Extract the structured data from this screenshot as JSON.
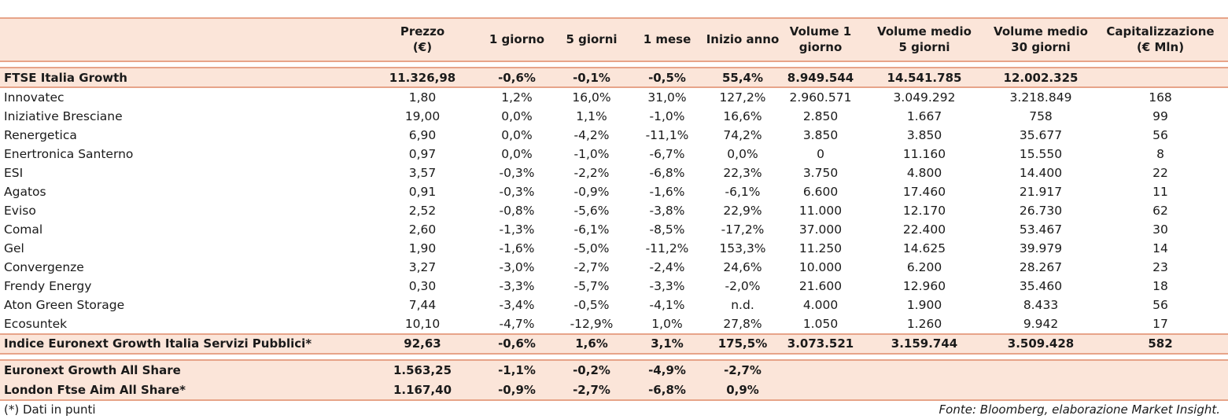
{
  "headers": [
    "",
    [
      "Prezzo",
      "(€)"
    ],
    [
      "1 giorno"
    ],
    [
      "5 giorni"
    ],
    [
      "1 mese"
    ],
    [
      "Inizio anno"
    ],
    [
      "Volume 1",
      "giorno"
    ],
    [
      "Volume medio",
      "5 giorni"
    ],
    [
      "Volume medio",
      "30 giorni"
    ],
    [
      "Capitalizzazione",
      "(€ Mln)"
    ]
  ],
  "ftse_row": [
    "FTSE Italia Growth",
    "11.326,98",
    "-0,6%",
    "-0,1%",
    "-0,5%",
    "55,4%",
    "8.949.544",
    "14.541.785",
    "12.002.325",
    ""
  ],
  "rows": [
    [
      "Innovatec",
      "1,80",
      "1,2%",
      "16,0%",
      "31,0%",
      "127,2%",
      "2.960.571",
      "3.049.292",
      "3.218.849",
      "168"
    ],
    [
      "Iniziative Bresciane",
      "19,00",
      "0,0%",
      "1,1%",
      "-1,0%",
      "16,6%",
      "2.850",
      "1.667",
      "758",
      "99"
    ],
    [
      "Renergetica",
      "6,90",
      "0,0%",
      "-4,2%",
      "-11,1%",
      "74,2%",
      "3.850",
      "3.850",
      "35.677",
      "56"
    ],
    [
      "Enertronica Santerno",
      "0,97",
      "0,0%",
      "-1,0%",
      "-6,7%",
      "0,0%",
      "0",
      "11.160",
      "15.550",
      "8"
    ],
    [
      "ESI",
      "3,57",
      "-0,3%",
      "-2,2%",
      "-6,8%",
      "22,3%",
      "3.750",
      "4.800",
      "14.400",
      "22"
    ],
    [
      "Agatos",
      "0,91",
      "-0,3%",
      "-0,9%",
      "-1,6%",
      "-6,1%",
      "6.600",
      "17.460",
      "21.917",
      "11"
    ],
    [
      "Eviso",
      "2,52",
      "-0,8%",
      "-5,6%",
      "-3,8%",
      "22,9%",
      "11.000",
      "12.170",
      "26.730",
      "62"
    ],
    [
      "Comal",
      "2,60",
      "-1,3%",
      "-6,1%",
      "-8,5%",
      "-17,2%",
      "37.000",
      "22.400",
      "53.467",
      "30"
    ],
    [
      "Gel",
      "1,90",
      "-1,6%",
      "-5,0%",
      "-11,2%",
      "153,3%",
      "11.250",
      "14.625",
      "39.979",
      "14"
    ],
    [
      "Convergenze",
      "3,27",
      "-3,0%",
      "-2,7%",
      "-2,4%",
      "24,6%",
      "10.000",
      "6.200",
      "28.267",
      "23"
    ],
    [
      "Frendy Energy",
      "0,30",
      "-3,3%",
      "-5,7%",
      "-3,3%",
      "-2,0%",
      "21.600",
      "12.960",
      "35.460",
      "18"
    ],
    [
      "Aton Green Storage",
      "7,44",
      "-3,4%",
      "-0,5%",
      "-4,1%",
      "n.d.",
      "4.000",
      "1.900",
      "8.433",
      "56"
    ],
    [
      "Ecosuntek",
      "10,10",
      "-4,7%",
      "-12,9%",
      "1,0%",
      "27,8%",
      "1.050",
      "1.260",
      "9.942",
      "17"
    ]
  ],
  "index_row": [
    "Indice Euronext Growth Italia Servizi Pubblici*",
    "92,63",
    "-0,6%",
    "1,6%",
    "3,1%",
    "175,5%",
    "3.073.521",
    "3.159.744",
    "3.509.428",
    "582"
  ],
  "market_rows": [
    [
      "Euronext Growth All Share",
      "1.563,25",
      "-1,1%",
      "-0,2%",
      "-4,9%",
      "-2,7%",
      "",
      "",
      "",
      ""
    ],
    [
      "London Ftse Aim All Share*",
      "1.167,40",
      "-0,9%",
      "-2,7%",
      "-6,8%",
      "0,9%",
      "",
      "",
      "",
      ""
    ]
  ],
  "footnote": "(*) Dati in punti",
  "source": "Fonte: Bloomberg, elaborazione Market Insight."
}
